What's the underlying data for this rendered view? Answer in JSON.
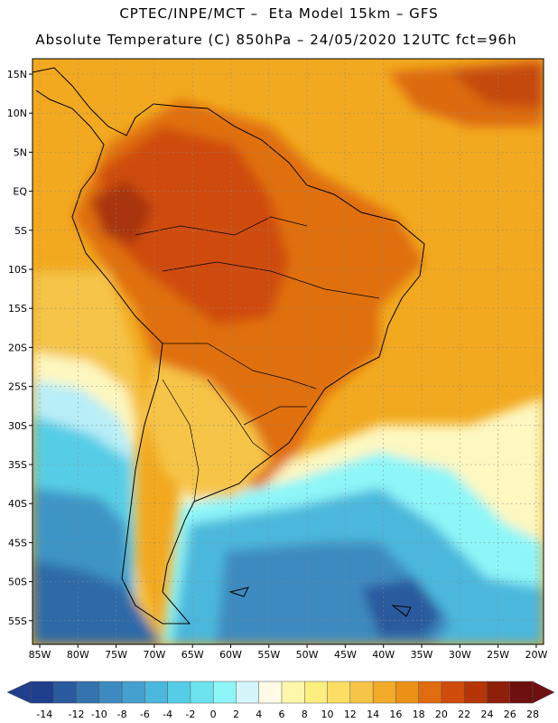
{
  "title": {
    "line1": "CPTEC/INPE/MCT –  Eta Model 15km – GFS",
    "line2": "Absolute Temperature (C) 850hPa – 24/05/2020 12UTC fct=96h"
  },
  "map": {
    "lat_labels": [
      "15N",
      "10N",
      "5N",
      "EQ",
      "5S",
      "10S",
      "15S",
      "20S",
      "25S",
      "30S",
      "35S",
      "40S",
      "45S",
      "50S",
      "55S"
    ],
    "lon_labels": [
      "85W",
      "80W",
      "75W",
      "70W",
      "65W",
      "60W",
      "55W",
      "50W",
      "45W",
      "40W",
      "35W",
      "30W",
      "25W",
      "20W"
    ]
  },
  "colorbar": {
    "labels": [
      "-14",
      "-12",
      "-10",
      "-8",
      "-6",
      "-4",
      "-2",
      "0",
      "2",
      "4",
      "6",
      "8",
      "10",
      "12",
      "14",
      "16",
      "18",
      "20",
      "22",
      "24",
      "26",
      "28"
    ],
    "colors": [
      "#1f3e8c",
      "#2a5a9e",
      "#3473ae",
      "#3d8ac0",
      "#44a0cf",
      "#4cb7dc",
      "#56cde6",
      "#6ce3ef",
      "#8ef6f8",
      "#d4f5fa",
      "#fffbe6",
      "#fdf7ab",
      "#fcee7f",
      "#fbde63",
      "#f6c447",
      "#f1ab28",
      "#eb9216",
      "#e06c0f",
      "#cf4c0c",
      "#b53507",
      "#8e1f0a",
      "#6e1010"
    ]
  },
  "palette": {
    "ocean_pacific": "#4fbcd8",
    "ocean_atlantic": "#f1a820",
    "land_hot": "#d9620f"
  }
}
